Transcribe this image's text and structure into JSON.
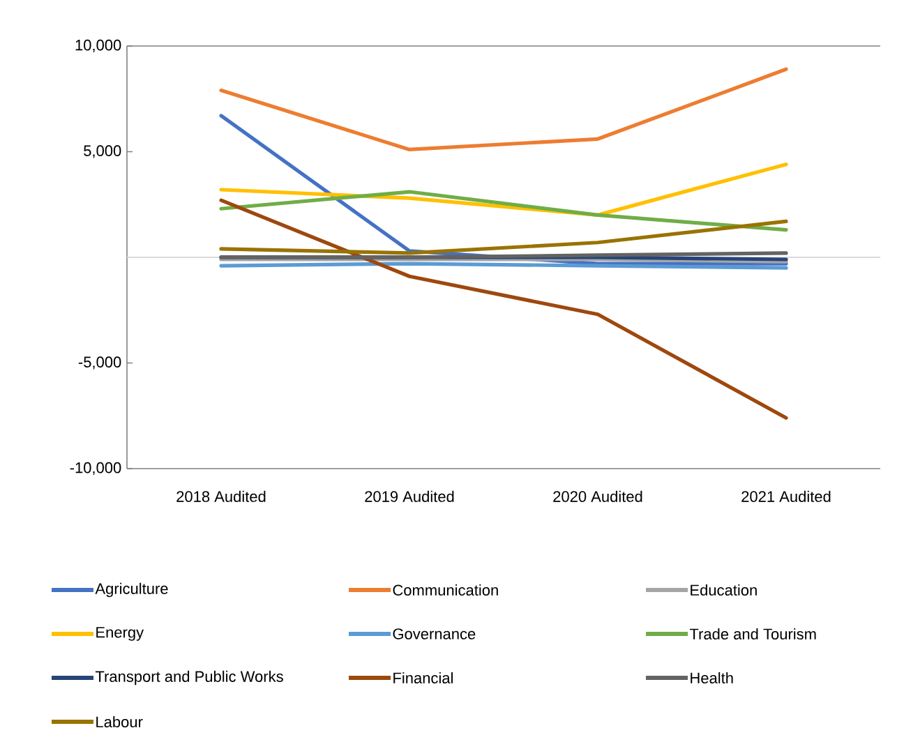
{
  "chart_data": {
    "type": "line",
    "categories": [
      "2018 Audited",
      "2019 Audited",
      "2020 Audited",
      "2021 Audited"
    ],
    "series": [
      {
        "name": "Agriculture",
        "color": "#4472c4",
        "values": [
          6700,
          300,
          -300,
          -300
        ]
      },
      {
        "name": "Communication",
        "color": "#ed7d31",
        "values": [
          7900,
          5100,
          5600,
          8900
        ]
      },
      {
        "name": "Education",
        "color": "#a5a5a5",
        "values": [
          -100,
          -100,
          -100,
          -200
        ]
      },
      {
        "name": "Energy",
        "color": "#ffc000",
        "values": [
          3200,
          2800,
          2000,
          4400
        ]
      },
      {
        "name": "Governance",
        "color": "#5b9bd5",
        "values": [
          -400,
          -300,
          -400,
          -500
        ]
      },
      {
        "name": "Trade and Tourism",
        "color": "#70ad47",
        "values": [
          2300,
          3100,
          2000,
          1300
        ]
      },
      {
        "name": "Transport and Public Works",
        "color": "#264478",
        "values": [
          0,
          0,
          0,
          -100
        ]
      },
      {
        "name": "Financial",
        "color": "#9e480e",
        "values": [
          2700,
          -900,
          -2700,
          -7600
        ]
      },
      {
        "name": "Health",
        "color": "#636363",
        "values": [
          0,
          0,
          100,
          200
        ]
      },
      {
        "name": "Labour",
        "color": "#997300",
        "values": [
          400,
          200,
          700,
          1700
        ]
      }
    ],
    "ylim": [
      -10000,
      10000
    ],
    "yticks": [
      {
        "value": 10000,
        "label": "10,000"
      },
      {
        "value": 5000,
        "label": "5,000"
      },
      {
        "value": -5000,
        "label": "-5,000"
      },
      {
        "value": -10000,
        "label": "-10,000"
      }
    ],
    "ref_lines": [
      {
        "axis": "y",
        "value": 0,
        "color": "#d9d9d9"
      }
    ],
    "legend": "bottom",
    "line_style": "solid"
  }
}
